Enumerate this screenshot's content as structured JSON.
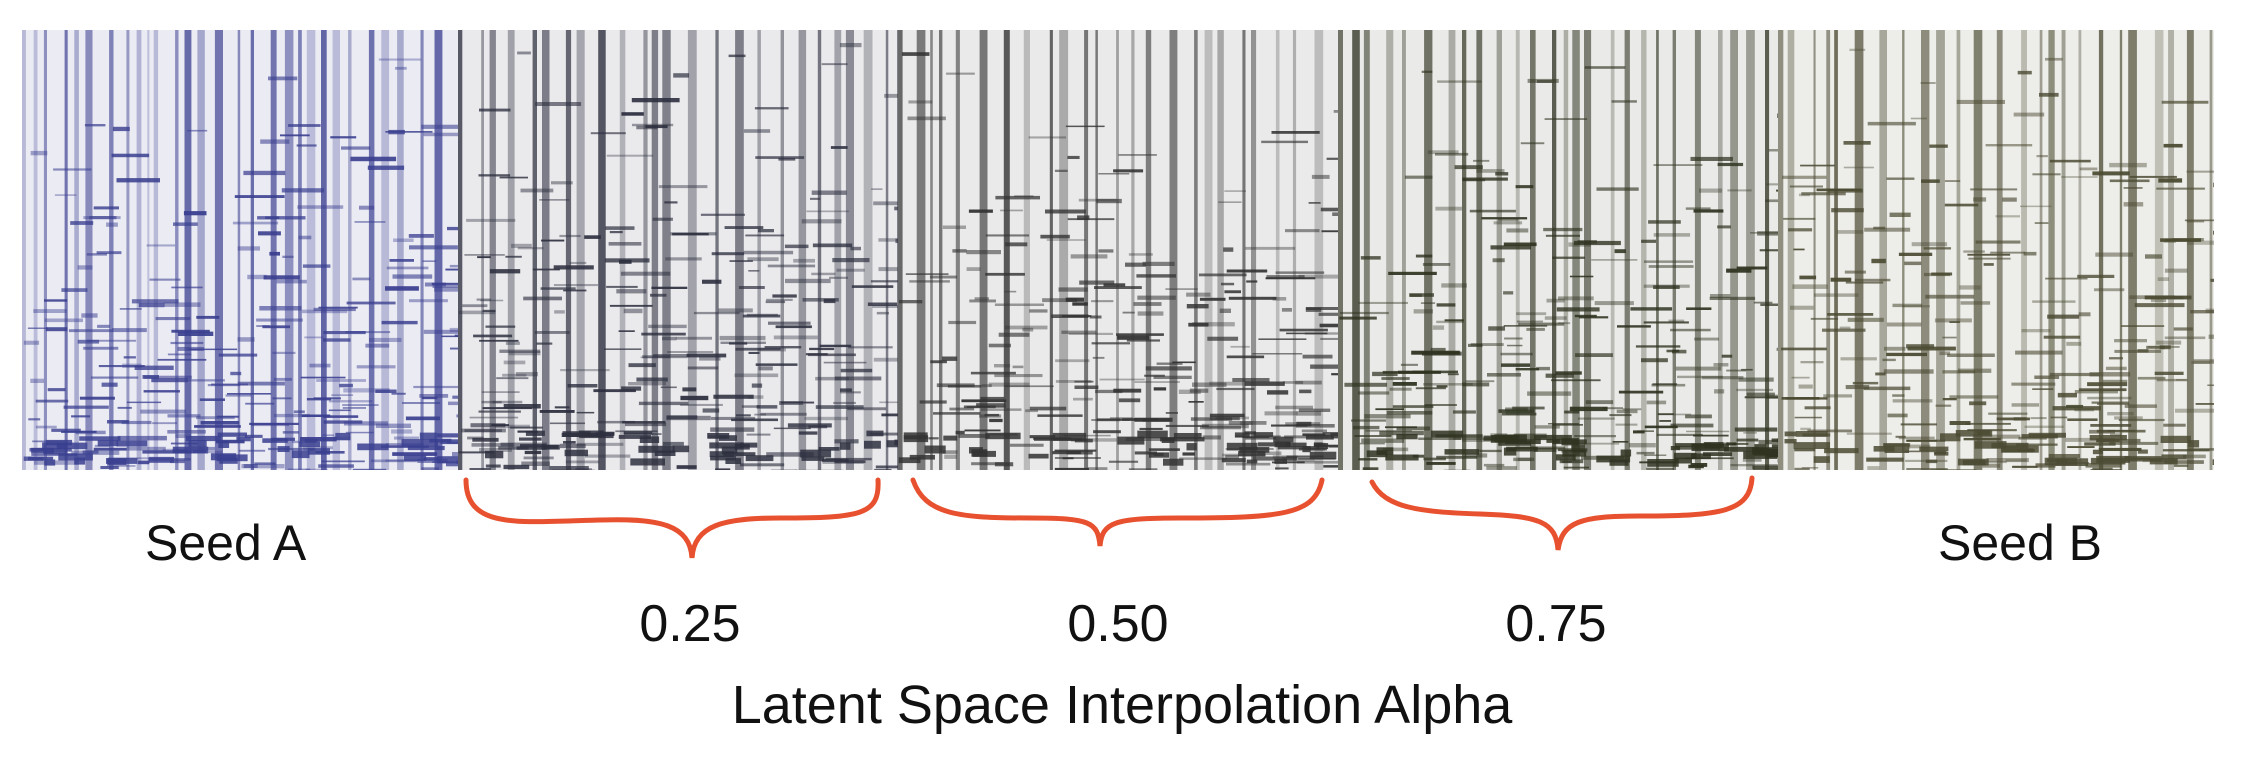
{
  "panels": [
    {
      "id": "seed-a",
      "tint": "#3a3f8f"
    },
    {
      "id": "alpha-025",
      "tint": "#2e3040"
    },
    {
      "id": "alpha-050",
      "tint": "#333333"
    },
    {
      "id": "alpha-075",
      "tint": "#2f3320"
    },
    {
      "id": "seed-b",
      "tint": "#4b4a32"
    }
  ],
  "labels": {
    "seed_a": "Seed A",
    "seed_b": "Seed B",
    "alpha_values": [
      "0.25",
      "0.50",
      "0.75"
    ],
    "axis_title": "Latent Space Interpolation Alpha"
  },
  "colors": {
    "brace": "#e8512f",
    "background": "#ffffff"
  }
}
